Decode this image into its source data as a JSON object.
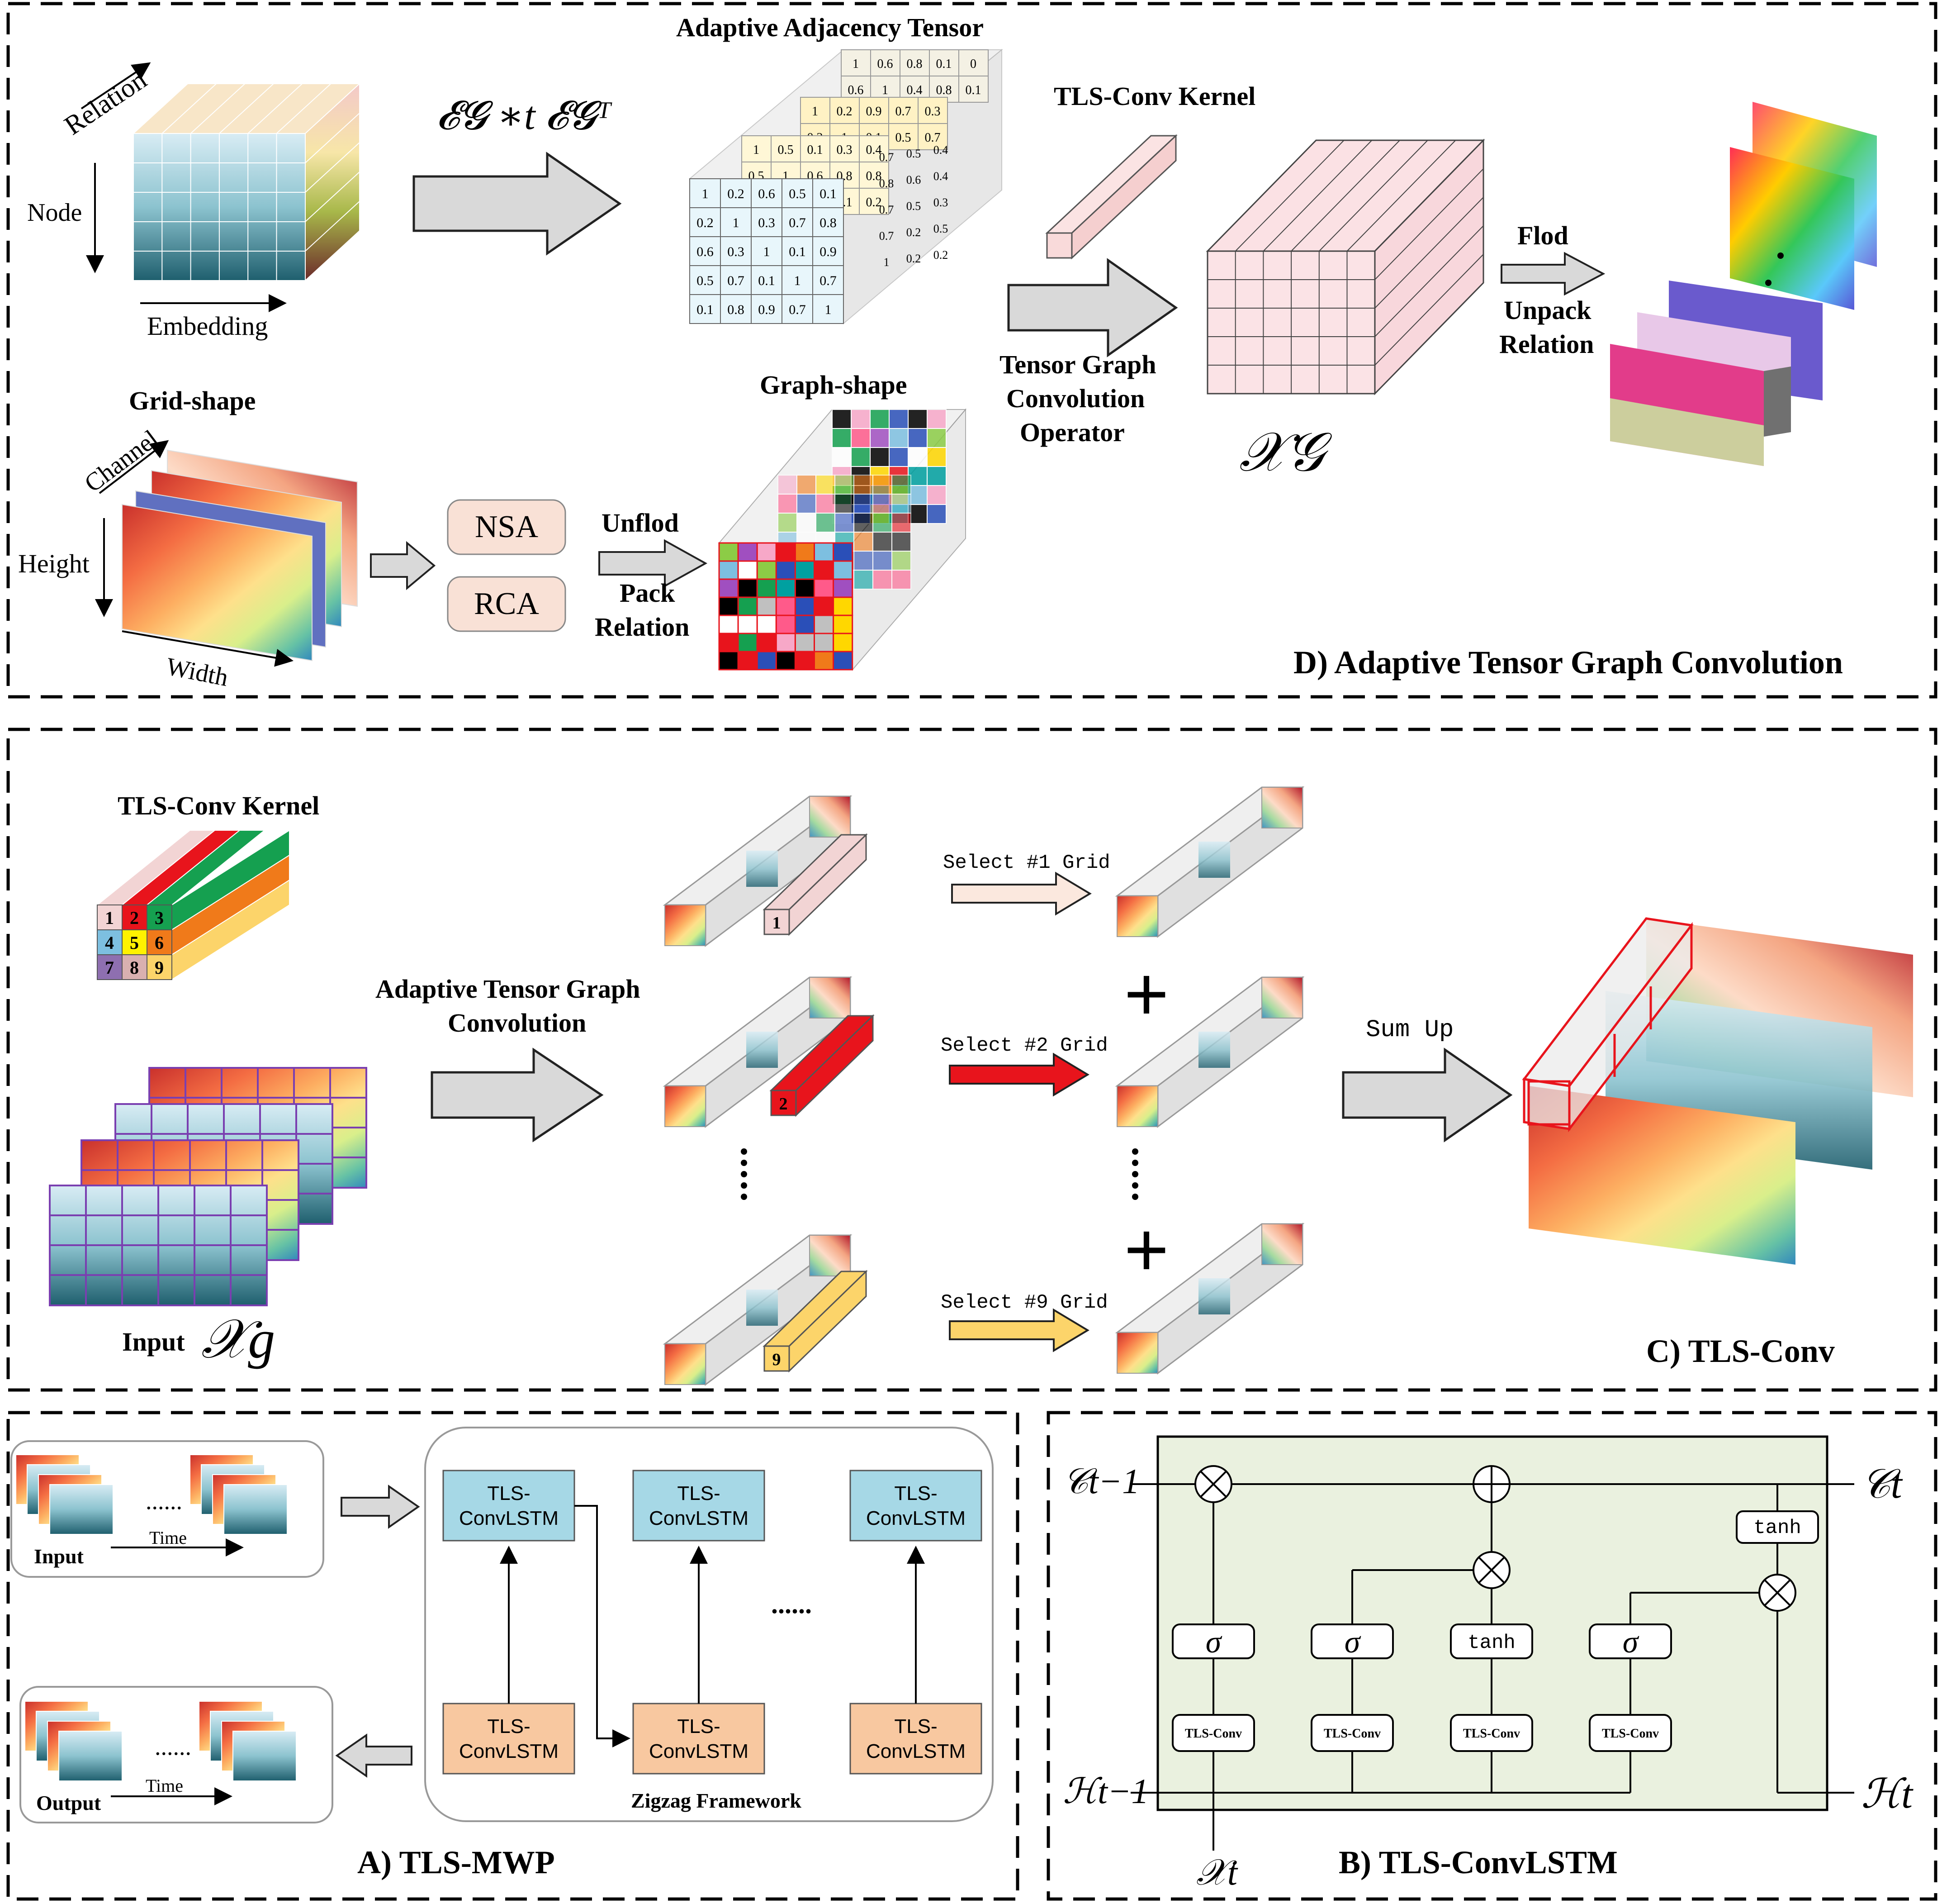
{
  "panel_d": {
    "title": "D) Adaptive Tensor Graph Convolution",
    "relation_label": "Relation",
    "node_label": "Node",
    "embedding_label": "Embedding",
    "formula": "𝓔𝓖 ∗t 𝓔𝓖ᵀ",
    "adj_title": "Adaptive Adjacency Tensor",
    "adj_front_matrix": [
      [
        "1",
        "0.2",
        "0.6",
        "0.5",
        "0.1"
      ],
      [
        "0.2",
        "1",
        "0.3",
        "0.7",
        "0.8"
      ],
      [
        "0.6",
        "0.3",
        "1",
        "0.1",
        "0.9"
      ],
      [
        "0.5",
        "0.7",
        "0.1",
        "1",
        "0.7"
      ],
      [
        "0.1",
        "0.8",
        "0.9",
        "0.7",
        "1"
      ]
    ],
    "adj_mid_matrix": [
      [
        "1",
        "0.5",
        "0.1",
        "0.3",
        "0.4"
      ],
      [
        "0.5",
        "1",
        "0.6",
        "0.8",
        "0.8"
      ],
      [
        "0.1",
        "0.6",
        "1",
        "0.1",
        "0.2"
      ]
    ],
    "adj_mid2_matrix": [
      [
        "1",
        "0.2",
        "0.9",
        "0.7",
        "0.3"
      ],
      [
        "0.2",
        "1",
        "0.1",
        "0.5",
        "0.7"
      ]
    ],
    "adj_back_matrix": [
      [
        "1",
        "0.6",
        "0.8",
        "0.1",
        "0"
      ],
      [
        "0.6",
        "1",
        "0.4",
        "0.8",
        "0.1"
      ]
    ],
    "adj_side_values": [
      "0.7",
      "0.5",
      "0.4",
      "0.8",
      "0.6",
      "0.4",
      "0.7",
      "0.5",
      "0.3",
      "0.7",
      "0.2",
      "0.5",
      "1",
      "0.2",
      "0.2"
    ],
    "tls_kernel_label": "TLS-Conv Kernel",
    "tgc_operator": [
      "Tensor Graph",
      "Convolution",
      "Operator"
    ],
    "xg_label": "𝒳𝒢",
    "flod_label": "Flod",
    "unpack_relation": [
      "Unpack",
      "Relation"
    ],
    "grid_shape_label": "Grid-shape",
    "channel_label": "Channel",
    "height_label": "Height",
    "width_label": "Width",
    "nsa_label": "NSA",
    "rca_label": "RCA",
    "unflod_label": "Unflod",
    "pack_relation": [
      "Pack",
      "Relation"
    ],
    "graph_shape_label": "Graph-shape"
  },
  "panel_c": {
    "title": "C) TLS-Conv",
    "kernel_label": "TLS-Conv Kernel",
    "kernel_cells": [
      "1",
      "2",
      "3",
      "4",
      "5",
      "6",
      "7",
      "8",
      "9"
    ],
    "input_label": "Input",
    "input_symbol": "𝒳g",
    "atgc_label": [
      "Adaptive Tensor Graph",
      "Convolution"
    ],
    "select_1": "Select #1 Grid",
    "select_2": "Select #2 Grid",
    "select_9": "Select #9 Grid",
    "sum_up": "Sum Up",
    "kernel_1": "1",
    "kernel_2": "2",
    "kernel_9": "9",
    "plus": "+"
  },
  "panel_a": {
    "title": "A) TLS-MWP",
    "input_label": "Input",
    "output_label": "Output",
    "time_label": "Time",
    "dots": "......",
    "cell_label": [
      "TLS-",
      "ConvLSTM"
    ],
    "zigzag_label": "Zigzag Framework",
    "middle_dots": "......"
  },
  "panel_b": {
    "title": "B) TLS-ConvLSTM",
    "c_prev": "𝒞t−1",
    "c_next": "𝒞t",
    "h_prev": "ℋt−1",
    "h_next": "ℋt",
    "x_t": "𝒳t",
    "sigma": "σ",
    "tanh": "tanh",
    "tls_conv": "TLS-Conv"
  },
  "colors": {
    "grid_heat": [
      "#b40a2a",
      "#f36b3b",
      "#fdbb6c",
      "#ffe8a0",
      "#c9e8a8",
      "#5fbfa2",
      "#2a7fb8",
      "#3a3a9a"
    ],
    "kernel_colors": [
      "#f2d4d4",
      "#e8141c",
      "#15a050",
      "#7dbfe0",
      "#fff200",
      "#f07a1a",
      "#8e6fb0",
      "#d9b0b0",
      "#fcd46a"
    ],
    "cell_blue": "#a6d8e6",
    "cell_orange": "#f8c8a0",
    "lstm_bg": "#eaf1df",
    "pink_box": "#f9e1d6"
  }
}
